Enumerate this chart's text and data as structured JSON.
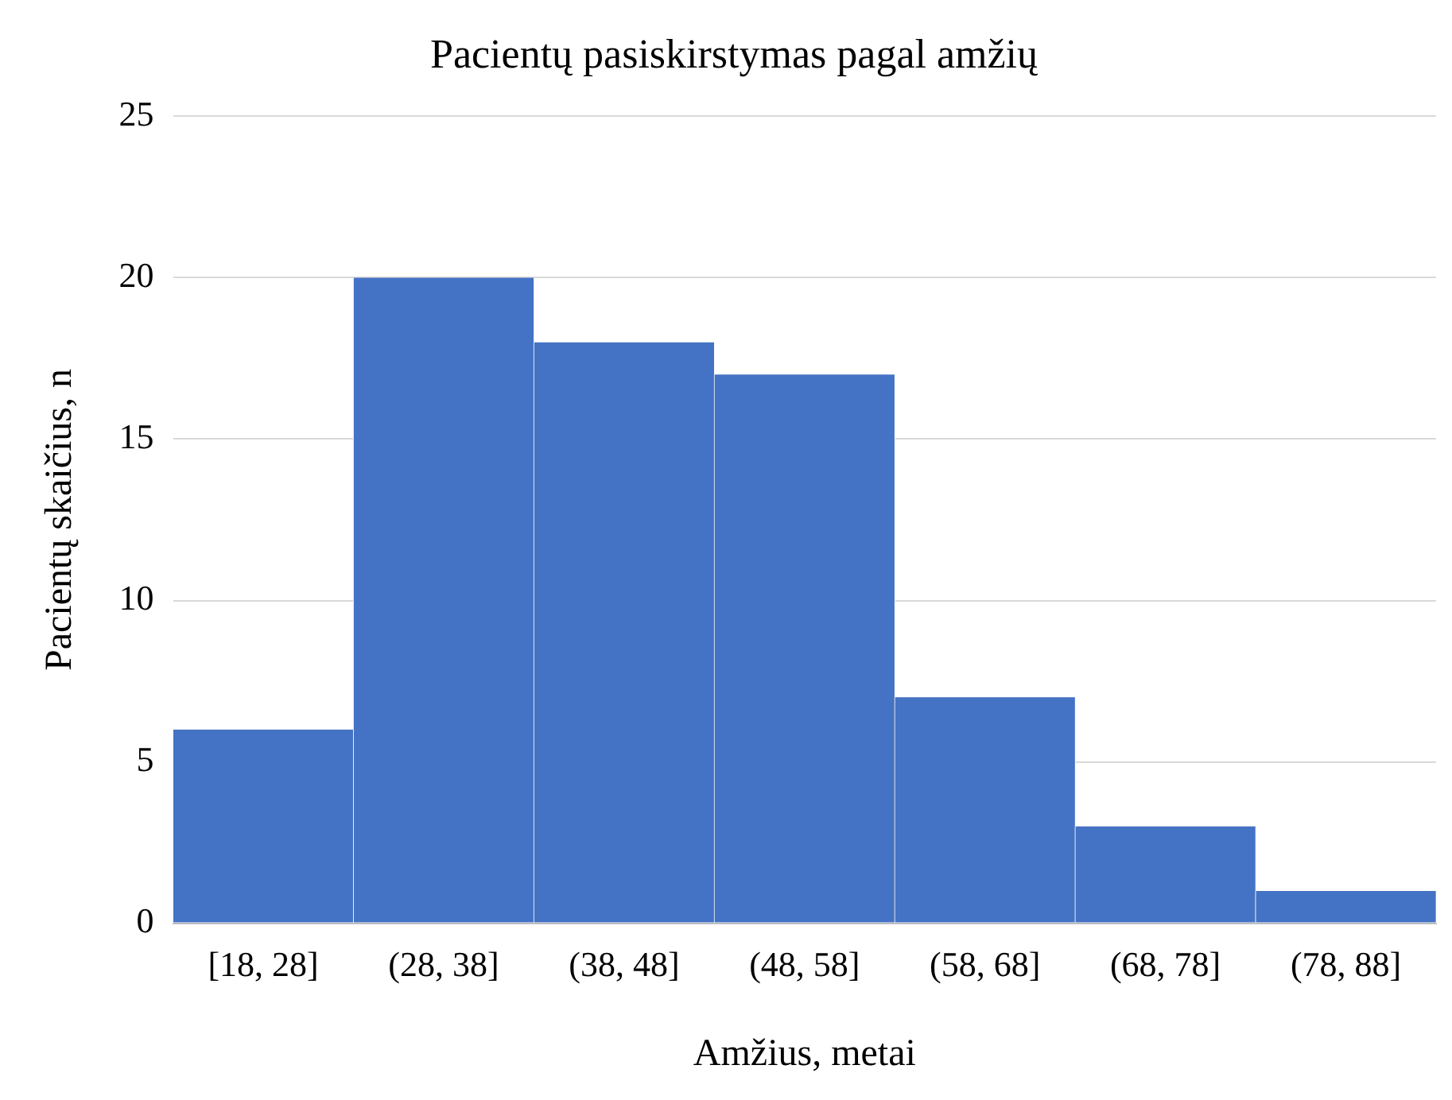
{
  "chart_data": {
    "type": "bar",
    "title": "Pacientų pasiskirstymas pagal amžių",
    "xlabel": "Amžius, metai",
    "ylabel": "Pacientų skaičius, n",
    "categories": [
      "[18, 28]",
      "(28, 38]",
      "(38, 48]",
      "(48, 58]",
      "(58, 68]",
      "(68, 78]",
      "(78, 88]"
    ],
    "values": [
      6,
      20,
      18,
      17,
      7,
      3,
      1
    ],
    "color": "#4472c4",
    "ylim": [
      0,
      25
    ],
    "yticks": [
      0,
      5,
      10,
      15,
      20,
      25
    ],
    "grid": "y",
    "legend": false
  }
}
